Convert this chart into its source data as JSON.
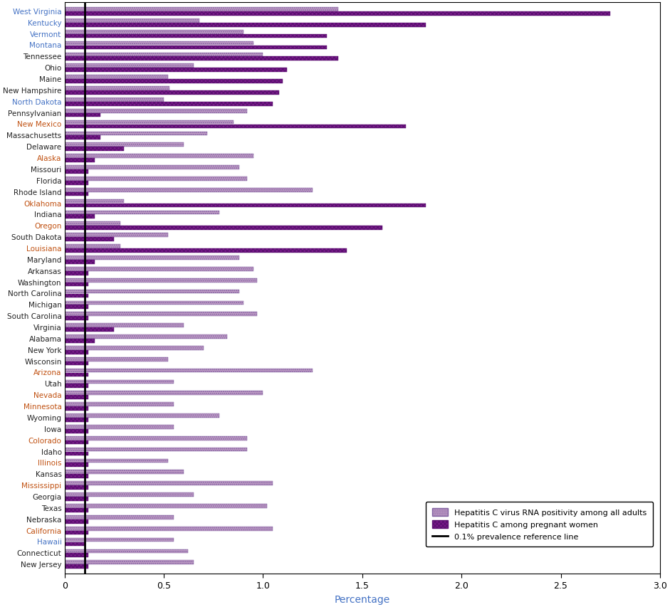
{
  "states": [
    "West Virginia",
    "Kentucky",
    "Vermont",
    "Montana",
    "Tennessee",
    "Ohio",
    "Maine",
    "New Hampshire",
    "North Dakota",
    "Pennsylvanian",
    "New Mexico",
    "Massachusetts",
    "Delaware",
    "Alaska",
    "Missouri",
    "Florida",
    "Rhode Island",
    "Oklahoma",
    "Indiana",
    "Oregon",
    "South Dakota",
    "Louisiana",
    "Maryland",
    "Arkansas",
    "Washington",
    "North Carolina",
    "Michigan",
    "South Carolina",
    "Virginia",
    "Alabama",
    "New York",
    "Wisconsin",
    "Arizona",
    "Utah",
    "Nevada",
    "Minnesota",
    "Wyoming",
    "Iowa",
    "Colorado",
    "Idaho",
    "Illinois",
    "Kansas",
    "Mississippi",
    "Georgia",
    "Texas",
    "Nebraska",
    "California",
    "Hawaii",
    "Connecticut",
    "New Jersey"
  ],
  "all_adults": [
    1.38,
    0.68,
    0.9,
    0.95,
    1.0,
    0.65,
    0.52,
    0.53,
    0.5,
    0.92,
    0.85,
    0.72,
    0.6,
    0.95,
    0.88,
    0.92,
    1.25,
    0.3,
    0.78,
    0.28,
    0.52,
    0.28,
    0.88,
    0.95,
    0.97,
    0.88,
    0.9,
    0.97,
    0.6,
    0.82,
    0.7,
    0.52,
    1.25,
    0.55,
    1.0,
    0.55,
    0.78,
    0.55,
    0.92,
    0.92,
    0.52,
    0.6,
    1.05,
    0.65,
    1.02,
    0.55,
    1.05,
    0.55,
    0.62,
    0.65
  ],
  "pregnant_women": [
    2.75,
    1.82,
    1.32,
    1.32,
    1.38,
    1.12,
    1.1,
    1.08,
    1.05,
    0.18,
    1.72,
    0.18,
    0.3,
    0.15,
    0.12,
    0.12,
    0.12,
    1.82,
    0.15,
    1.6,
    0.25,
    1.42,
    0.15,
    0.12,
    0.12,
    0.12,
    0.12,
    0.12,
    0.25,
    0.15,
    0.12,
    0.12,
    0.12,
    0.12,
    0.12,
    0.12,
    0.12,
    0.12,
    0.12,
    0.12,
    0.12,
    0.12,
    0.12,
    0.12,
    0.12,
    0.12,
    0.12,
    0.1,
    0.12,
    0.12
  ],
  "color_adults": "#C4A0C8",
  "color_pregnant": "#7B1A8B",
  "ref_line_x": 0.1,
  "xlim": [
    0,
    3.0
  ],
  "xticks": [
    0.0,
    0.5,
    1.0,
    1.5,
    2.0,
    2.5,
    3.0
  ],
  "xlabel": "Percentage",
  "legend_labels": [
    "Hepatitis C virus RNA positivity among all adults",
    "Hepatitis C among pregnant women",
    "0.1% prevalence reference line"
  ],
  "state_colors": {
    "West Virginia": "#4472C4",
    "Kentucky": "#4472C4",
    "Vermont": "#4472C4",
    "Montana": "#4472C4",
    "Tennessee": "#222222",
    "Ohio": "#222222",
    "Maine": "#222222",
    "New Hampshire": "#222222",
    "North Dakota": "#4472C4",
    "Pennsylvanian": "#222222",
    "New Mexico": "#C05010",
    "Massachusetts": "#222222",
    "Delaware": "#222222",
    "Alaska": "#C05010",
    "Missouri": "#222222",
    "Florida": "#222222",
    "Rhode Island": "#222222",
    "Oklahoma": "#C05010",
    "Indiana": "#222222",
    "Oregon": "#C05010",
    "South Dakota": "#222222",
    "Louisiana": "#C05010",
    "Maryland": "#222222",
    "Arkansas": "#222222",
    "Washington": "#222222",
    "North Carolina": "#222222",
    "Michigan": "#222222",
    "South Carolina": "#222222",
    "Virginia": "#222222",
    "Alabama": "#222222",
    "New York": "#222222",
    "Wisconsin": "#222222",
    "Arizona": "#C05010",
    "Utah": "#222222",
    "Nevada": "#C05010",
    "Minnesota": "#C05010",
    "Wyoming": "#222222",
    "Iowa": "#222222",
    "Colorado": "#C05010",
    "Idaho": "#222222",
    "Illinois": "#C05010",
    "Kansas": "#222222",
    "Mississippi": "#C05010",
    "Georgia": "#222222",
    "Texas": "#222222",
    "Nebraska": "#222222",
    "California": "#C05010",
    "Hawaii": "#4472C4",
    "Connecticut": "#222222",
    "New Jersey": "#222222"
  }
}
